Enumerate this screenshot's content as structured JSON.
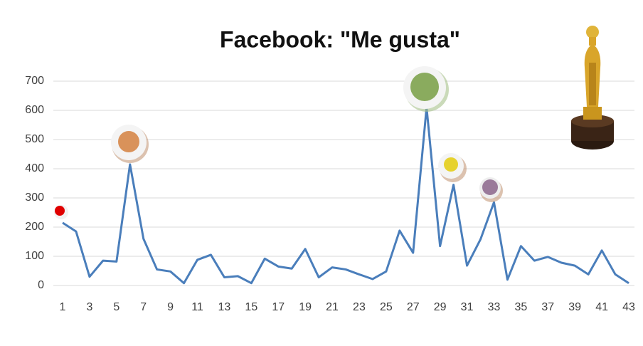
{
  "chart_data": {
    "type": "line",
    "title": "Facebook: \"Me gusta\"",
    "x": [
      1,
      2,
      3,
      4,
      5,
      6,
      7,
      8,
      9,
      10,
      11,
      12,
      13,
      14,
      15,
      16,
      17,
      18,
      19,
      20,
      21,
      22,
      23,
      24,
      25,
      26,
      27,
      28,
      29,
      30,
      31,
      32,
      33,
      34,
      35,
      36,
      37,
      38,
      39,
      40,
      41,
      42,
      43
    ],
    "series": [
      {
        "color": "#4a7ebb",
        "values": [
          215,
          185,
          30,
          85,
          82,
          415,
          160,
          55,
          48,
          8,
          88,
          105,
          28,
          32,
          8,
          92,
          65,
          58,
          125,
          28,
          62,
          55,
          38,
          22,
          48,
          188,
          112,
          610,
          135,
          345,
          68,
          158,
          285,
          20,
          135,
          85,
          98,
          78,
          68,
          38,
          120,
          38,
          8
        ]
      }
    ],
    "xlim": [
      1,
      43
    ],
    "xticks": [
      1,
      3,
      5,
      7,
      9,
      11,
      13,
      15,
      17,
      19,
      21,
      23,
      25,
      27,
      29,
      31,
      33,
      35,
      37,
      39,
      41,
      43
    ],
    "ylim": [
      0,
      700
    ],
    "yticks": [
      0,
      100,
      200,
      300,
      400,
      500,
      600,
      700
    ],
    "grid": true
  }
}
